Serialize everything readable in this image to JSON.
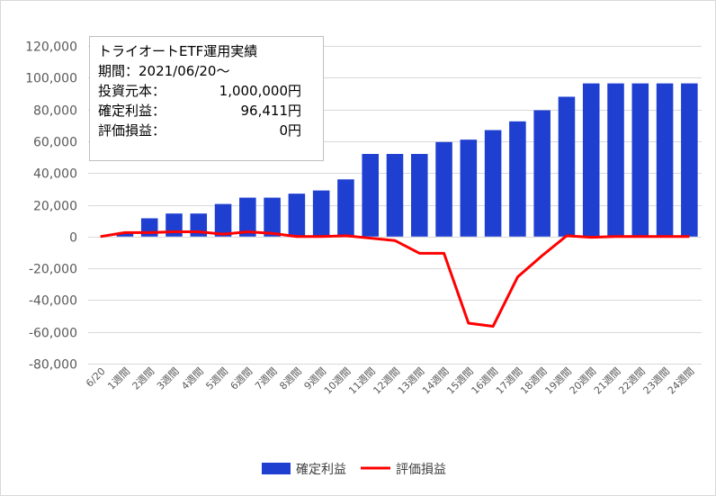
{
  "info": {
    "title": "トライオートETF運用実績",
    "period": "期間：2021/06/20～",
    "rows": [
      {
        "label": "投資元本：",
        "value": "1,000,000円"
      },
      {
        "label": "確定利益：",
        "value": "96,411円"
      },
      {
        "label": "評価損益：",
        "value": "0円"
      }
    ]
  },
  "chart_data": {
    "type": "bar",
    "categories": [
      "6/20",
      "1週間",
      "2週間",
      "3週間",
      "4週間",
      "5週間",
      "6週間",
      "7週間",
      "8週間",
      "9週間",
      "10週間",
      "11週間",
      "12週間",
      "13週間",
      "14週間",
      "15週間",
      "16週間",
      "17週間",
      "18週間",
      "19週間",
      "20週間",
      "21週間",
      "22週間",
      "23週間",
      "24週間"
    ],
    "ylim": [
      -80000,
      120000
    ],
    "yticks": [
      "120,000",
      "100,000",
      "80,000",
      "60,000",
      "40,000",
      "20,000",
      "0",
      "-20,000",
      "-40,000",
      "-60,000",
      "-80,000"
    ],
    "grid": true,
    "legend_position": "bottom",
    "series": [
      {
        "name": "確定利益",
        "kind": "bar",
        "color": "#1f3fd1",
        "values": [
          0,
          2000,
          11500,
          14500,
          14500,
          20500,
          24500,
          24500,
          27000,
          29000,
          36000,
          52000,
          52000,
          52000,
          59500,
          61000,
          67000,
          72500,
          79500,
          88000,
          96400,
          96400,
          96400,
          96400,
          96411
        ]
      },
      {
        "name": "評価損益",
        "kind": "line",
        "color": "#ff0000",
        "values": [
          0,
          2500,
          2500,
          3000,
          3000,
          1500,
          3000,
          2000,
          0,
          0,
          500,
          -1000,
          -2500,
          -10500,
          -10500,
          -54500,
          -56500,
          -25500,
          -12000,
          500,
          -500,
          0,
          0,
          0,
          0
        ]
      }
    ]
  }
}
